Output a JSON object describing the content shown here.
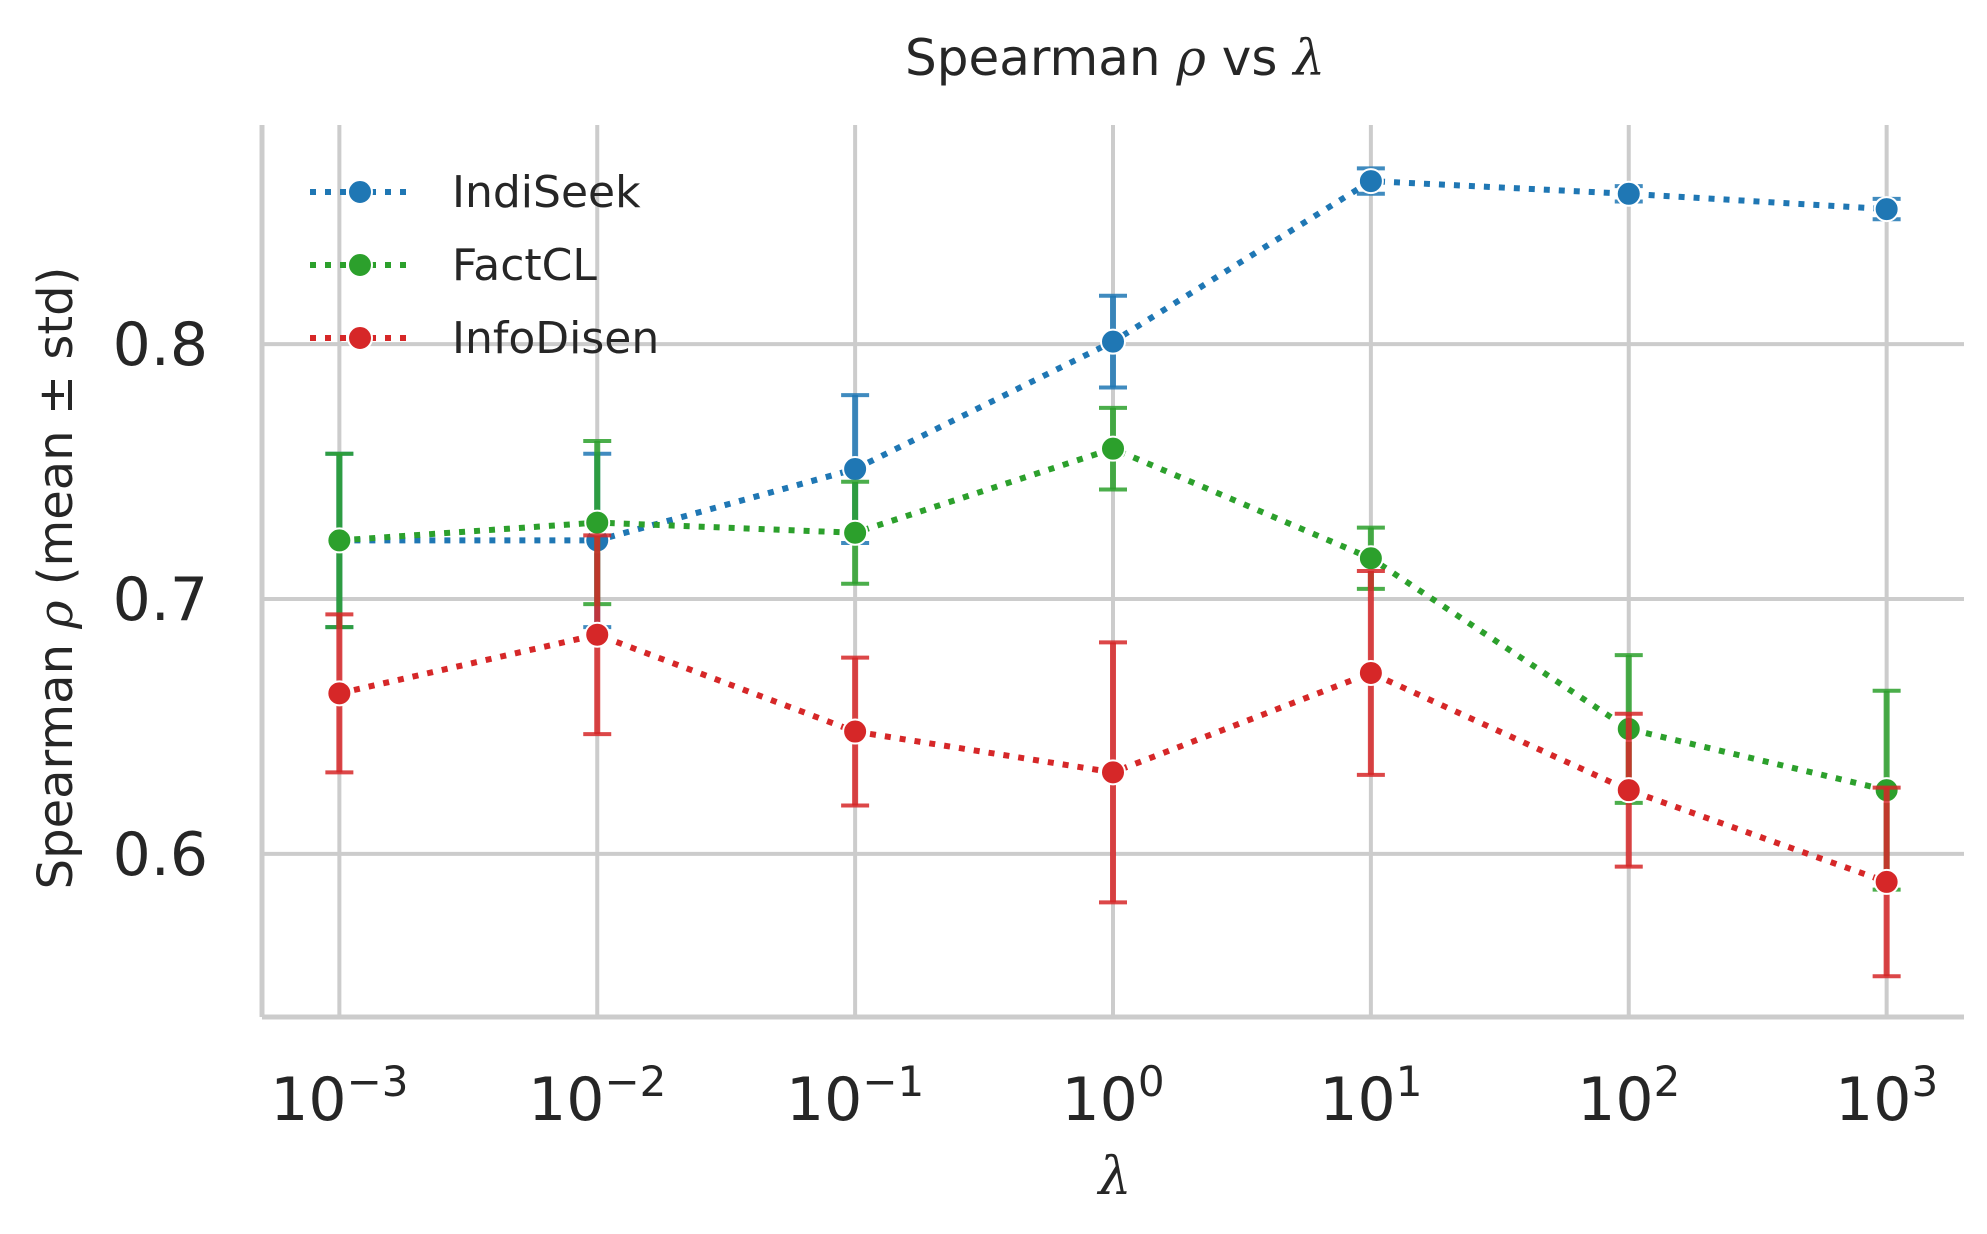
{
  "chart_data": {
    "type": "line",
    "title_prefix": "Spearman ",
    "title_rho": "ρ",
    "title_mid": " vs ",
    "title_lambda": "λ",
    "xlabel": "λ",
    "ylabel_prefix": "Spearman ",
    "ylabel_rho": "ρ",
    "ylabel_suffix": " (mean ± std)",
    "x_ticks": [
      {
        "base": "10",
        "exp": "−3"
      },
      {
        "base": "10",
        "exp": "−2"
      },
      {
        "base": "10",
        "exp": "−1"
      },
      {
        "base": "10",
        "exp": "0"
      },
      {
        "base": "10",
        "exp": "1"
      },
      {
        "base": "10",
        "exp": "2"
      },
      {
        "base": "10",
        "exp": "3"
      }
    ],
    "x_log10": [
      -3,
      -2,
      -1,
      0,
      1,
      2,
      3
    ],
    "y_ticks": [
      "0.6",
      "0.7",
      "0.8"
    ],
    "y_tick_values": [
      0.6,
      0.7,
      0.8
    ],
    "ylim": [
      0.536,
      0.886
    ],
    "xlim_log10": [
      -3.3,
      3.3
    ],
    "legend_position": "top-left",
    "series": [
      {
        "name": "IndiSeek",
        "color": "#1f77b4",
        "values": [
          0.723,
          0.723,
          0.751,
          0.801,
          0.864,
          0.859,
          0.853
        ],
        "std": [
          0.034,
          0.034,
          0.029,
          0.018,
          0.005,
          0.003,
          0.004
        ]
      },
      {
        "name": "FactCL",
        "color": "#2ca02c",
        "values": [
          0.723,
          0.73,
          0.726,
          0.759,
          0.716,
          0.649,
          0.625
        ],
        "std": [
          0.034,
          0.032,
          0.02,
          0.016,
          0.012,
          0.029,
          0.039
        ]
      },
      {
        "name": "InfoDisen",
        "color": "#d62728",
        "values": [
          0.663,
          0.686,
          0.648,
          0.632,
          0.671,
          0.625,
          0.589
        ],
        "std": [
          0.031,
          0.039,
          0.029,
          0.051,
          0.04,
          0.03,
          0.037
        ]
      }
    ]
  }
}
